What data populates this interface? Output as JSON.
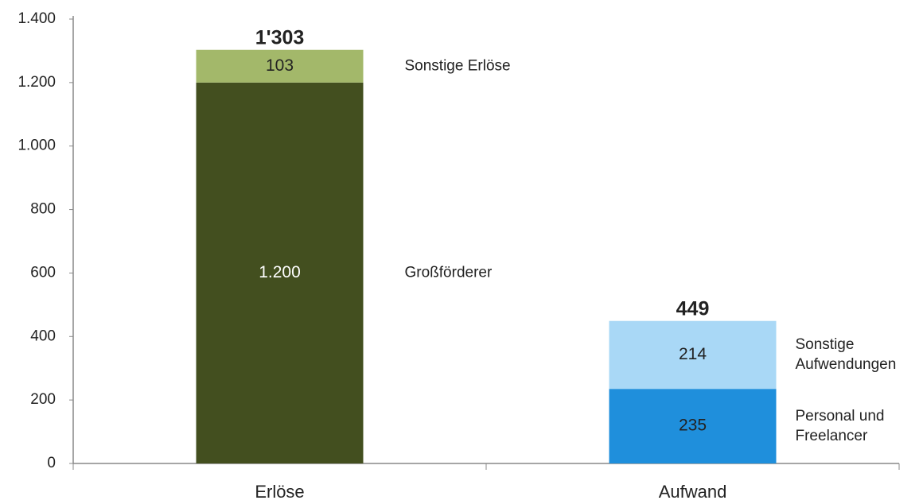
{
  "chart_data": {
    "type": "stacked-bar",
    "categories": [
      "Erlöse",
      "Aufwand"
    ],
    "series": [
      {
        "name": "Großförderer",
        "color": "#434f1f",
        "label_color": "#ffffff",
        "values": [
          1200,
          null
        ],
        "value_labels": [
          "1.200",
          null
        ]
      },
      {
        "name": "Sonstige Erlöse",
        "color": "#a3b86a",
        "label_color": "#222222",
        "values": [
          103,
          null
        ]
      },
      {
        "name": "Personal und Freelancer",
        "color": "#1f8fdc",
        "label_color": "#222222",
        "values": [
          null,
          235
        ]
      },
      {
        "name": "Sonstige Aufwendungen",
        "color": "#a9d8f6",
        "label_color": "#222222",
        "values": [
          null,
          214
        ]
      }
    ],
    "totals": {
      "values": [
        1303,
        449
      ],
      "value_labels": [
        "1'303",
        null
      ]
    },
    "ylim": [
      0,
      1400
    ],
    "yticks": [
      0,
      200,
      400,
      600,
      800,
      {
        "value": 1000,
        "label": "1.000"
      },
      {
        "value": 1200,
        "label": "1.200"
      },
      {
        "value": 1400,
        "label": "1.400"
      }
    ],
    "grid": false
  }
}
